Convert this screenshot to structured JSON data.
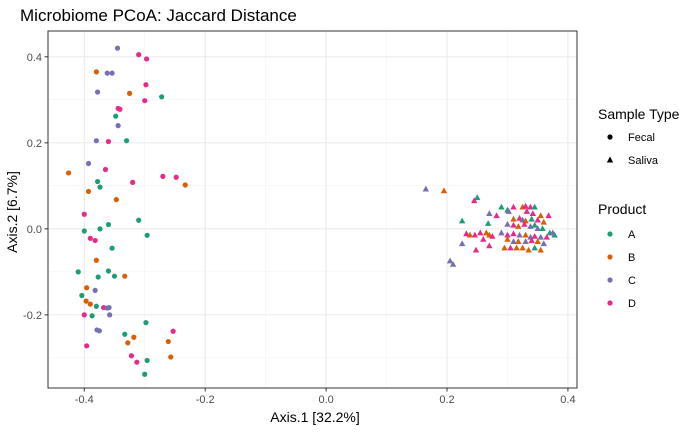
{
  "chart_data": {
    "type": "scatter",
    "title": "Microbiome PCoA: Jaccard Distance",
    "xlabel": "Axis.1   [32.2%]",
    "ylabel": "Axis.2   [6.7%]",
    "xlim": [
      -0.46,
      0.415
    ],
    "ylim": [
      -0.37,
      0.46
    ],
    "x_ticks": [
      -0.4,
      -0.2,
      0.0,
      0.2,
      0.4
    ],
    "x_tick_labels": [
      "-0.4",
      "-0.2",
      "0.0",
      "0.2",
      "0.4"
    ],
    "y_ticks": [
      -0.2,
      0.0,
      0.2,
      0.4
    ],
    "y_tick_labels": [
      "-0.2",
      "0.0",
      "0.2",
      "0.4"
    ],
    "grid": true,
    "legend_position": "right",
    "legends": {
      "shape": {
        "title": "Sample Type",
        "entries": [
          {
            "label": "Fecal",
            "shape": "circle"
          },
          {
            "label": "Saliva",
            "shape": "triangle"
          }
        ]
      },
      "color": {
        "title": "Product",
        "entries": [
          {
            "label": "A",
            "color": "#1b9e77"
          },
          {
            "label": "B",
            "color": "#d95f02"
          },
          {
            "label": "C",
            "color": "#7570b3"
          },
          {
            "label": "D",
            "color": "#e7298a"
          }
        ]
      }
    },
    "series": [
      {
        "name": "Fecal",
        "shape": "circle",
        "points": [
          {
            "x": -0.345,
            "y": 0.42,
            "g": "C"
          },
          {
            "x": -0.31,
            "y": 0.405,
            "g": "D"
          },
          {
            "x": -0.297,
            "y": 0.395,
            "g": "D"
          },
          {
            "x": -0.38,
            "y": 0.365,
            "g": "B"
          },
          {
            "x": -0.362,
            "y": 0.362,
            "g": "C"
          },
          {
            "x": -0.354,
            "y": 0.362,
            "g": "C"
          },
          {
            "x": -0.298,
            "y": 0.335,
            "g": "D"
          },
          {
            "x": -0.378,
            "y": 0.318,
            "g": "C"
          },
          {
            "x": -0.325,
            "y": 0.315,
            "g": "B"
          },
          {
            "x": -0.272,
            "y": 0.307,
            "g": "A"
          },
          {
            "x": -0.3,
            "y": 0.298,
            "g": "D"
          },
          {
            "x": -0.344,
            "y": 0.28,
            "g": "D"
          },
          {
            "x": -0.341,
            "y": 0.278,
            "g": "D"
          },
          {
            "x": -0.348,
            "y": 0.262,
            "g": "A"
          },
          {
            "x": -0.344,
            "y": 0.24,
            "g": "C"
          },
          {
            "x": -0.38,
            "y": 0.205,
            "g": "C"
          },
          {
            "x": -0.36,
            "y": 0.203,
            "g": "D"
          },
          {
            "x": -0.33,
            "y": 0.205,
            "g": "A"
          },
          {
            "x": -0.393,
            "y": 0.152,
            "g": "C"
          },
          {
            "x": -0.365,
            "y": 0.138,
            "g": "D"
          },
          {
            "x": -0.426,
            "y": 0.13,
            "g": "B"
          },
          {
            "x": -0.27,
            "y": 0.122,
            "g": "D"
          },
          {
            "x": -0.248,
            "y": 0.12,
            "g": "D"
          },
          {
            "x": -0.378,
            "y": 0.11,
            "g": "A"
          },
          {
            "x": -0.32,
            "y": 0.108,
            "g": "D"
          },
          {
            "x": -0.233,
            "y": 0.102,
            "g": "B"
          },
          {
            "x": -0.374,
            "y": 0.097,
            "g": "A"
          },
          {
            "x": -0.393,
            "y": 0.087,
            "g": "B"
          },
          {
            "x": -0.347,
            "y": 0.068,
            "g": "B"
          },
          {
            "x": -0.4,
            "y": 0.034,
            "g": "D"
          },
          {
            "x": -0.31,
            "y": 0.02,
            "g": "A"
          },
          {
            "x": -0.36,
            "y": 0.01,
            "g": "A"
          },
          {
            "x": -0.374,
            "y": 0.0,
            "g": "A"
          },
          {
            "x": -0.4,
            "y": -0.005,
            "g": "A"
          },
          {
            "x": -0.296,
            "y": -0.015,
            "g": "A"
          },
          {
            "x": -0.39,
            "y": -0.022,
            "g": "D"
          },
          {
            "x": -0.382,
            "y": -0.027,
            "g": "D"
          },
          {
            "x": -0.354,
            "y": -0.045,
            "g": "A"
          },
          {
            "x": -0.38,
            "y": -0.073,
            "g": "B"
          },
          {
            "x": -0.41,
            "y": -0.1,
            "g": "A"
          },
          {
            "x": -0.36,
            "y": -0.098,
            "g": "A"
          },
          {
            "x": -0.333,
            "y": -0.11,
            "g": "B"
          },
          {
            "x": -0.35,
            "y": -0.11,
            "g": "A"
          },
          {
            "x": -0.377,
            "y": -0.112,
            "g": "A"
          },
          {
            "x": -0.396,
            "y": -0.137,
            "g": "B"
          },
          {
            "x": -0.382,
            "y": -0.143,
            "g": "C"
          },
          {
            "x": -0.404,
            "y": -0.155,
            "g": "A"
          },
          {
            "x": -0.397,
            "y": -0.168,
            "g": "B"
          },
          {
            "x": -0.39,
            "y": -0.175,
            "g": "B"
          },
          {
            "x": -0.38,
            "y": -0.18,
            "g": "A"
          },
          {
            "x": -0.368,
            "y": -0.183,
            "g": "D"
          },
          {
            "x": -0.362,
            "y": -0.184,
            "g": "C"
          },
          {
            "x": -0.359,
            "y": -0.183,
            "g": "C"
          },
          {
            "x": -0.358,
            "y": -0.2,
            "g": "C"
          },
          {
            "x": -0.4,
            "y": -0.2,
            "g": "D"
          },
          {
            "x": -0.387,
            "y": -0.202,
            "g": "A"
          },
          {
            "x": -0.298,
            "y": -0.218,
            "g": "A"
          },
          {
            "x": -0.379,
            "y": -0.235,
            "g": "C"
          },
          {
            "x": -0.375,
            "y": -0.237,
            "g": "C"
          },
          {
            "x": -0.253,
            "y": -0.238,
            "g": "D"
          },
          {
            "x": -0.333,
            "y": -0.245,
            "g": "A"
          },
          {
            "x": -0.318,
            "y": -0.252,
            "g": "B"
          },
          {
            "x": -0.261,
            "y": -0.262,
            "g": "B"
          },
          {
            "x": -0.328,
            "y": -0.265,
            "g": "B"
          },
          {
            "x": -0.396,
            "y": -0.272,
            "g": "D"
          },
          {
            "x": -0.322,
            "y": -0.295,
            "g": "D"
          },
          {
            "x": -0.257,
            "y": -0.298,
            "g": "B"
          },
          {
            "x": -0.313,
            "y": -0.31,
            "g": "D"
          },
          {
            "x": -0.296,
            "y": -0.306,
            "g": "A"
          },
          {
            "x": -0.3,
            "y": -0.338,
            "g": "A"
          }
        ]
      },
      {
        "name": "Saliva",
        "shape": "triangle",
        "points": [
          {
            "x": 0.165,
            "y": 0.092,
            "g": "C"
          },
          {
            "x": 0.195,
            "y": 0.088,
            "g": "B"
          },
          {
            "x": 0.25,
            "y": 0.072,
            "g": "A"
          },
          {
            "x": 0.245,
            "y": 0.065,
            "g": "D"
          },
          {
            "x": 0.29,
            "y": 0.05,
            "g": "A"
          },
          {
            "x": 0.3,
            "y": 0.043,
            "g": "A"
          },
          {
            "x": 0.31,
            "y": 0.05,
            "g": "D"
          },
          {
            "x": 0.325,
            "y": 0.05,
            "g": "B"
          },
          {
            "x": 0.33,
            "y": 0.052,
            "g": "D"
          },
          {
            "x": 0.338,
            "y": 0.05,
            "g": "D"
          },
          {
            "x": 0.345,
            "y": 0.05,
            "g": "A"
          },
          {
            "x": 0.302,
            "y": 0.04,
            "g": "C"
          },
          {
            "x": 0.332,
            "y": 0.04,
            "g": "D"
          },
          {
            "x": 0.342,
            "y": 0.035,
            "g": "D"
          },
          {
            "x": 0.355,
            "y": 0.03,
            "g": "B"
          },
          {
            "x": 0.368,
            "y": 0.03,
            "g": "D"
          },
          {
            "x": 0.27,
            "y": 0.035,
            "g": "C"
          },
          {
            "x": 0.282,
            "y": 0.03,
            "g": "D"
          },
          {
            "x": 0.31,
            "y": 0.022,
            "g": "B"
          },
          {
            "x": 0.32,
            "y": 0.024,
            "g": "D"
          },
          {
            "x": 0.325,
            "y": 0.02,
            "g": "C"
          },
          {
            "x": 0.33,
            "y": 0.018,
            "g": "B"
          },
          {
            "x": 0.34,
            "y": 0.022,
            "g": "A"
          },
          {
            "x": 0.35,
            "y": 0.02,
            "g": "D"
          },
          {
            "x": 0.36,
            "y": 0.015,
            "g": "B"
          },
          {
            "x": 0.225,
            "y": 0.018,
            "g": "A"
          },
          {
            "x": 0.268,
            "y": 0.012,
            "g": "A"
          },
          {
            "x": 0.3,
            "y": 0.01,
            "g": "C"
          },
          {
            "x": 0.31,
            "y": 0.008,
            "g": "D"
          },
          {
            "x": 0.318,
            "y": 0.005,
            "g": "B"
          },
          {
            "x": 0.328,
            "y": 0.01,
            "g": "D"
          },
          {
            "x": 0.338,
            "y": 0.005,
            "g": "C"
          },
          {
            "x": 0.345,
            "y": 0.008,
            "g": "A"
          },
          {
            "x": 0.35,
            "y": 0.0,
            "g": "C"
          },
          {
            "x": 0.358,
            "y": 0.0,
            "g": "A"
          },
          {
            "x": 0.37,
            "y": -0.01,
            "g": "A"
          },
          {
            "x": 0.378,
            "y": -0.015,
            "g": "A"
          },
          {
            "x": 0.375,
            "y": -0.01,
            "g": "C"
          },
          {
            "x": 0.255,
            "y": -0.01,
            "g": "D"
          },
          {
            "x": 0.265,
            "y": -0.01,
            "g": "B"
          },
          {
            "x": 0.27,
            "y": -0.015,
            "g": "B"
          },
          {
            "x": 0.275,
            "y": -0.018,
            "g": "D"
          },
          {
            "x": 0.29,
            "y": -0.01,
            "g": "C"
          },
          {
            "x": 0.3,
            "y": -0.015,
            "g": "D"
          },
          {
            "x": 0.31,
            "y": -0.012,
            "g": "D"
          },
          {
            "x": 0.32,
            "y": -0.015,
            "g": "C"
          },
          {
            "x": 0.33,
            "y": -0.015,
            "g": "B"
          },
          {
            "x": 0.338,
            "y": -0.02,
            "g": "C"
          },
          {
            "x": 0.345,
            "y": -0.018,
            "g": "D"
          },
          {
            "x": 0.355,
            "y": -0.02,
            "g": "C"
          },
          {
            "x": 0.365,
            "y": -0.02,
            "g": "D"
          },
          {
            "x": 0.246,
            "y": -0.015,
            "g": "D"
          },
          {
            "x": 0.238,
            "y": -0.015,
            "g": "B"
          },
          {
            "x": 0.232,
            "y": -0.012,
            "g": "D"
          },
          {
            "x": 0.26,
            "y": -0.025,
            "g": "D"
          },
          {
            "x": 0.3,
            "y": -0.025,
            "g": "B"
          },
          {
            "x": 0.31,
            "y": -0.03,
            "g": "C"
          },
          {
            "x": 0.318,
            "y": -0.03,
            "g": "B"
          },
          {
            "x": 0.33,
            "y": -0.03,
            "g": "C"
          },
          {
            "x": 0.34,
            "y": -0.028,
            "g": "D"
          },
          {
            "x": 0.35,
            "y": -0.03,
            "g": "B"
          },
          {
            "x": 0.36,
            "y": -0.035,
            "g": "C"
          },
          {
            "x": 0.225,
            "y": -0.035,
            "g": "C"
          },
          {
            "x": 0.27,
            "y": -0.04,
            "g": "D"
          },
          {
            "x": 0.248,
            "y": -0.05,
            "g": "D"
          },
          {
            "x": 0.295,
            "y": -0.045,
            "g": "B"
          },
          {
            "x": 0.305,
            "y": -0.045,
            "g": "D"
          },
          {
            "x": 0.315,
            "y": -0.045,
            "g": "B"
          },
          {
            "x": 0.325,
            "y": -0.045,
            "g": "B"
          },
          {
            "x": 0.335,
            "y": -0.05,
            "g": "B"
          },
          {
            "x": 0.345,
            "y": -0.045,
            "g": "A"
          },
          {
            "x": 0.355,
            "y": -0.05,
            "g": "B"
          },
          {
            "x": 0.205,
            "y": -0.075,
            "g": "C"
          },
          {
            "x": 0.21,
            "y": -0.083,
            "g": "C"
          }
        ]
      }
    ]
  }
}
